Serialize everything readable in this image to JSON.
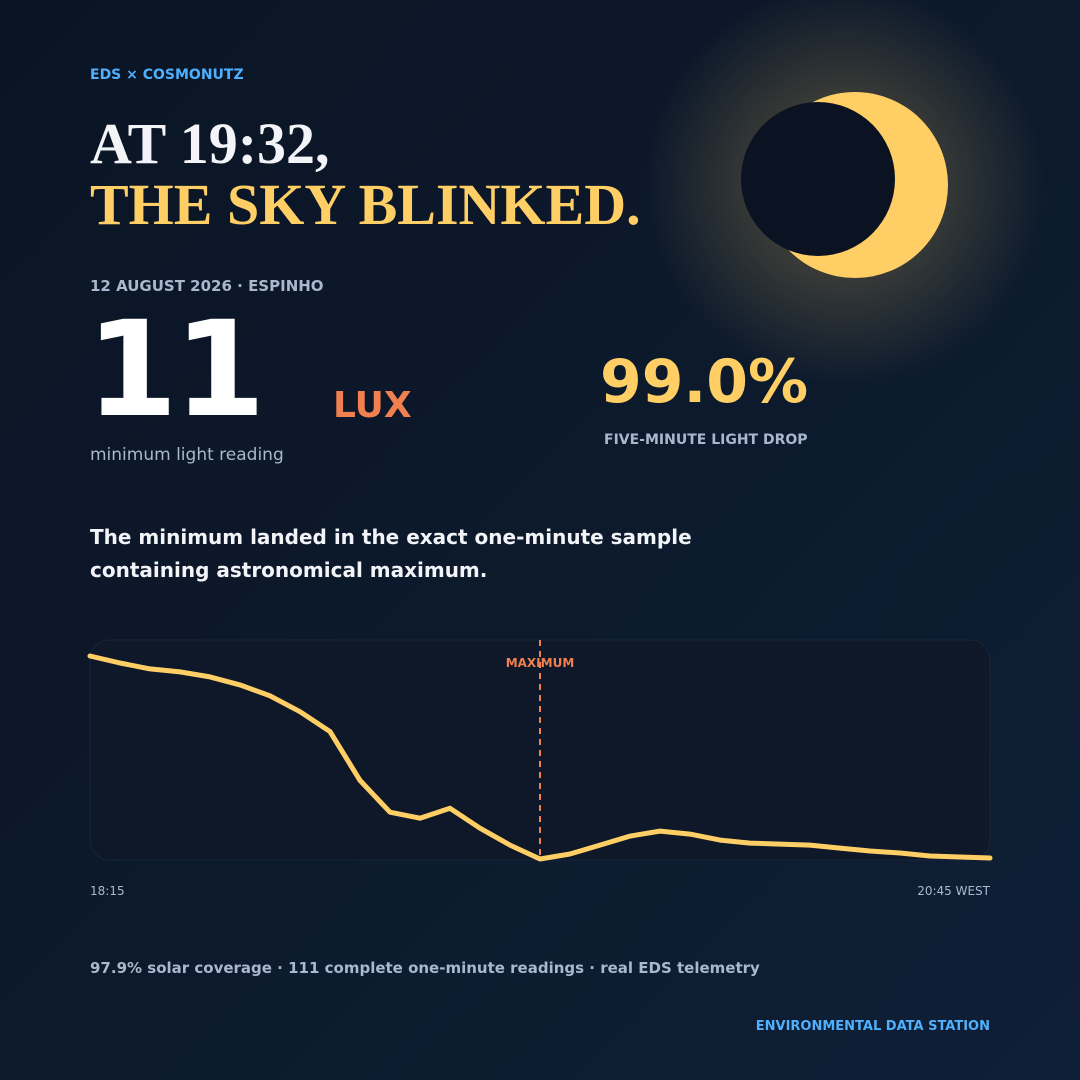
{
  "brand": "EDS × COSMONUTZ",
  "title": {
    "line1": "AT 19:32,",
    "line2": "THE SKY BLINKED."
  },
  "dateline": "12 AUGUST 2026 · ESPINHO",
  "stats": [
    {
      "value": "11",
      "unit": "LUX",
      "label": "minimum light reading"
    },
    {
      "value": "99.0%",
      "label": "FIVE-MINUTE LIGHT DROP"
    }
  ],
  "description": [
    "The minimum landed in the exact one-minute sample",
    "containing astronomical maximum."
  ],
  "chart_data": {
    "type": "line",
    "color": "#ffcf66",
    "annotation": "MAXIMUM",
    "x_labels": [
      "18:15",
      "20:45 WEST"
    ],
    "values": [
      204,
      197,
      191,
      188,
      183,
      175,
      164,
      148,
      128,
      79,
      47,
      41,
      51,
      31,
      14,
      0,
      5,
      14,
      23,
      28,
      25,
      19,
      16,
      15,
      14,
      11,
      8,
      6,
      3,
      2,
      1
    ]
  },
  "footer": {
    "note": "97.9% solar coverage · 111 complete one-minute readings · real EDS telemetry",
    "brand": "ENVIRONMENTAL DATA STATION"
  }
}
